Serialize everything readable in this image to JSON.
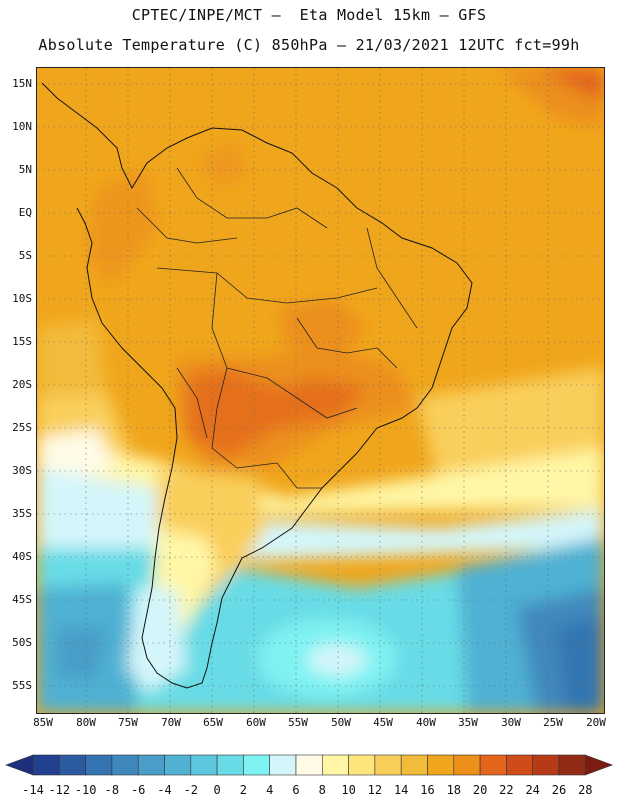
{
  "title_line1": "CPTEC/INPE/MCT —  Eta Model 15km — GFS",
  "title_line2": "Absolute Temperature (C) 850hPa — 21/03/2021 12UTC fct=99h",
  "map": {
    "lat_labels": [
      "15N",
      "10N",
      "5N",
      "EQ",
      "5S",
      "10S",
      "15S",
      "20S",
      "25S",
      "30S",
      "35S",
      "40S",
      "45S",
      "50S",
      "55S"
    ],
    "lon_labels": [
      "85W",
      "80W",
      "75W",
      "70W",
      "65W",
      "60W",
      "55W",
      "50W",
      "45W",
      "40W",
      "35W",
      "30W",
      "25W",
      "20W"
    ],
    "region": "South America"
  },
  "colorbar": {
    "labels": [
      "-14",
      "-12",
      "-10",
      "-8",
      "-6",
      "-4",
      "-2",
      "0",
      "2",
      "4",
      "6",
      "8",
      "10",
      "12",
      "14",
      "16",
      "18",
      "20",
      "22",
      "24",
      "26",
      "28"
    ],
    "colors": [
      "#21408f",
      "#2b5a9f",
      "#3374b1",
      "#3f88bd",
      "#4a9dc8",
      "#50b1d3",
      "#5bc6dd",
      "#68dce6",
      "#7ff2f2",
      "#d4f6fa",
      "#fffbe6",
      "#fff7a6",
      "#fde57b",
      "#f9cf5c",
      "#f3bb3a",
      "#f0a61c",
      "#ec8f1b",
      "#e3641b",
      "#cf4b1a",
      "#b73a17",
      "#932a16"
    ],
    "under_color": "#1d2f7d",
    "over_color": "#7a1c12"
  }
}
